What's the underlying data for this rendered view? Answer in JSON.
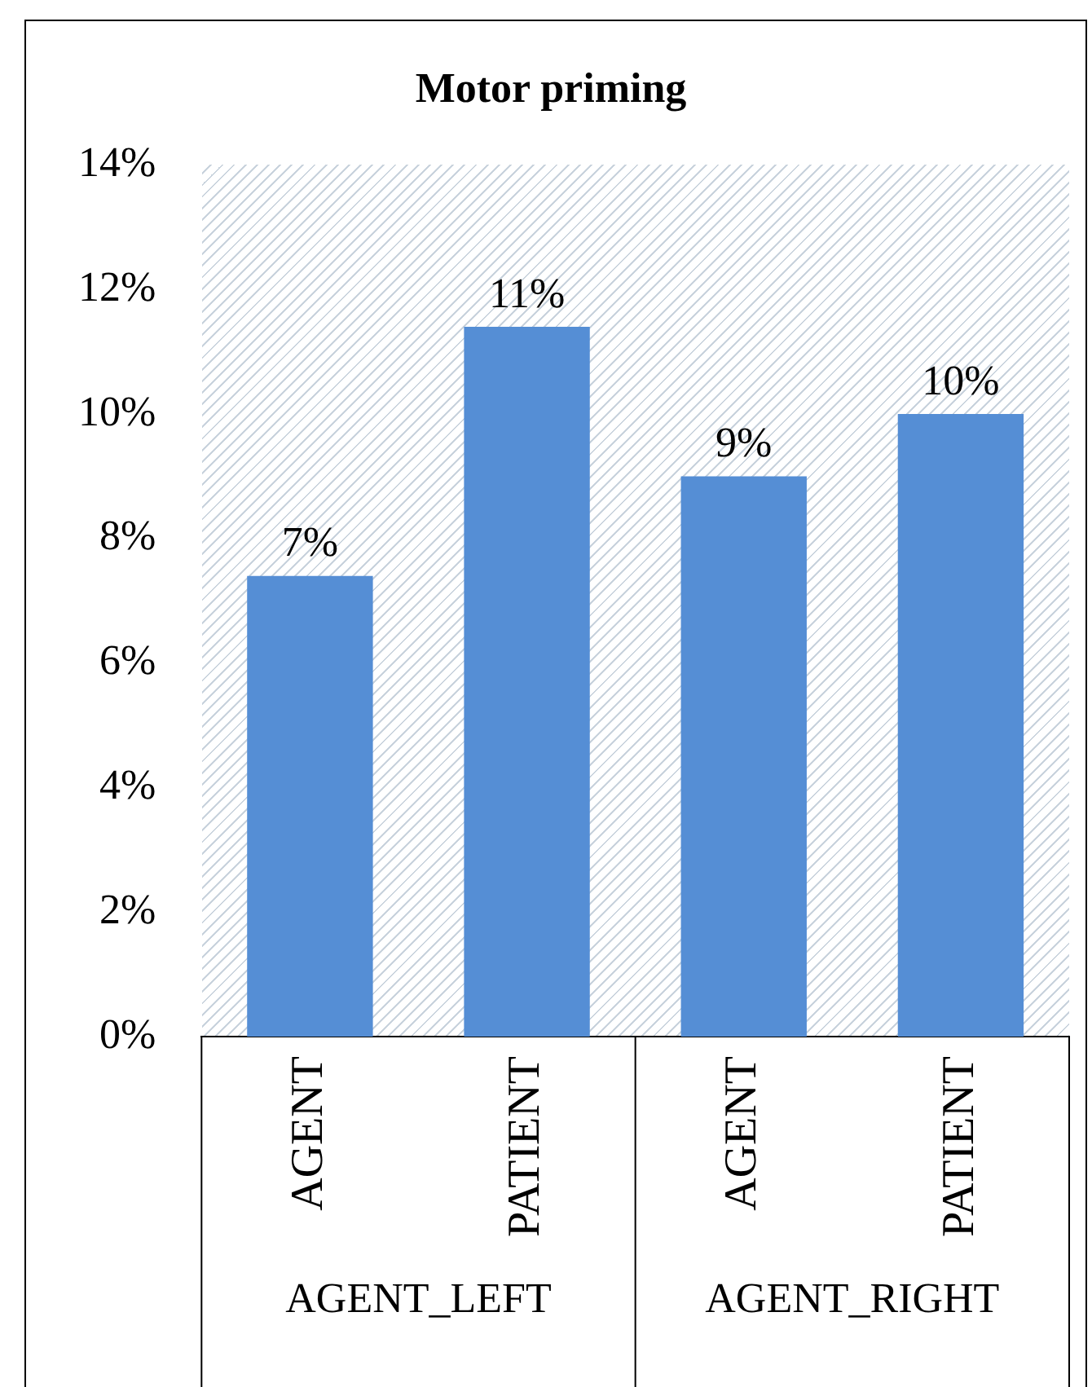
{
  "chart_data": {
    "type": "bar",
    "title": "Motor priming",
    "categories": [
      "AGENT",
      "PATIENT",
      "AGENT",
      "PATIENT"
    ],
    "values": [
      7.4,
      11.4,
      9.0,
      10.0
    ],
    "color": "#558ed5",
    "value_labels": [
      "7%",
      "11%",
      "9%",
      "10%"
    ],
    "ylim": [
      0,
      14
    ],
    "yticks": [
      {
        "value": 0,
        "label": "0%"
      },
      {
        "value": 2,
        "label": "2%"
      },
      {
        "value": 4,
        "label": "4%"
      },
      {
        "value": 6,
        "label": "6%"
      },
      {
        "value": 8,
        "label": "8%"
      },
      {
        "value": 10,
        "label": "10%"
      },
      {
        "value": 12,
        "label": "12%"
      },
      {
        "value": 14,
        "label": "14%"
      }
    ],
    "annotations": [
      "AGENT_LEFT",
      "AGENT_RIGHT"
    ],
    "grid": false,
    "legend": false
  }
}
